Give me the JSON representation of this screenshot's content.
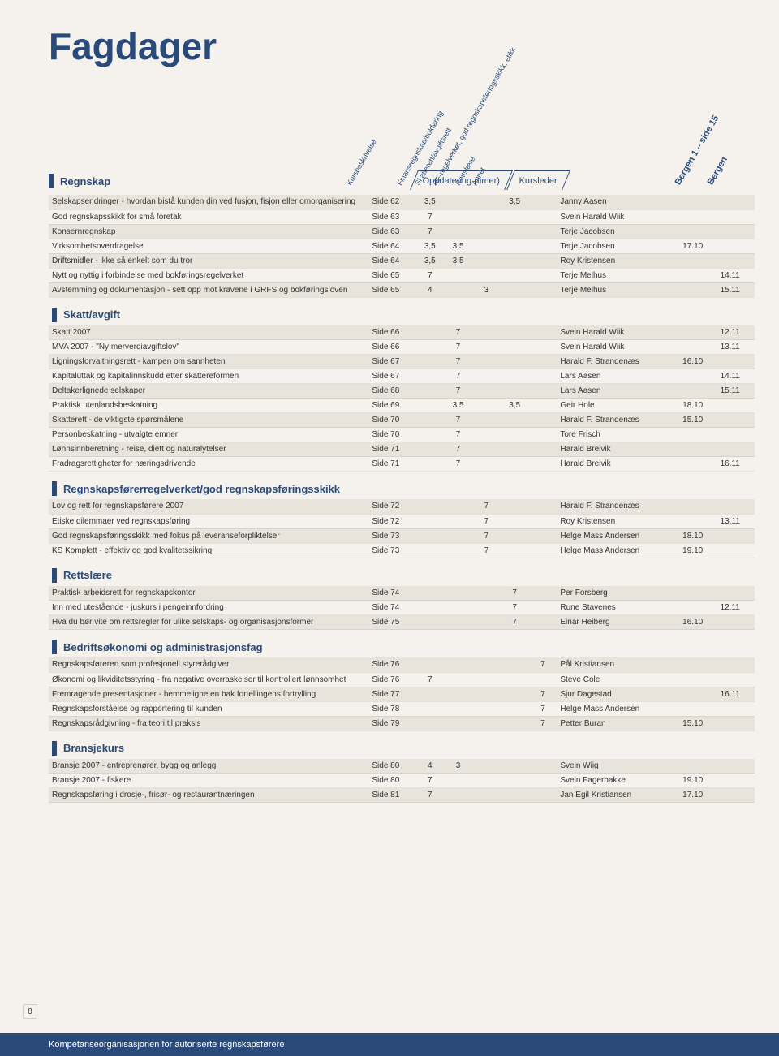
{
  "title": "Fagdager",
  "tabs": [
    "Oppdatering (timer)",
    "Kursleder"
  ],
  "diag_headers": [
    "Kursbeskrivelse",
    "Finansregnskap/bokføring",
    "Skatterett/avgiftsrett",
    "RF-regelverket, god regnskapsføringsskikk, etikk",
    "Rettslære",
    "Annet"
  ],
  "diag_right": [
    "Bergen 1 – side 15",
    "Bergen"
  ],
  "page_number": "8",
  "footer": "Kompetanseorganisasjonen for autoriserte regnskapsførere",
  "sections": [
    {
      "name": "Regnskap",
      "rows": [
        {
          "desc": "Selskapsendringer - hvordan bistå kunden din ved fusjon, fisjon eller omorganisering",
          "side": "Side 62",
          "c1": "3,5",
          "c2": "",
          "c3": "",
          "c4": "3,5",
          "c5": "",
          "person": "Janny Aasen",
          "d1": "",
          "d2": "",
          "shaded": true
        },
        {
          "desc": "God regnskapsskikk for små foretak",
          "side": "Side 63",
          "c1": "7",
          "c2": "",
          "c3": "",
          "c4": "",
          "c5": "",
          "person": "Svein Harald Wiik",
          "d1": "",
          "d2": ""
        },
        {
          "desc": "Konsernregnskap",
          "side": "Side 63",
          "c1": "7",
          "c2": "",
          "c3": "",
          "c4": "",
          "c5": "",
          "person": "Terje Jacobsen",
          "d1": "",
          "d2": "",
          "shaded": true
        },
        {
          "desc": "Virksomhetsoverdragelse",
          "side": "Side 64",
          "c1": "3,5",
          "c2": "3,5",
          "c3": "",
          "c4": "",
          "c5": "",
          "person": "Terje Jacobsen",
          "d1": "17.10",
          "d2": ""
        },
        {
          "desc": "Driftsmidler - ikke så enkelt som du tror",
          "side": "Side 64",
          "c1": "3,5",
          "c2": "3,5",
          "c3": "",
          "c4": "",
          "c5": "",
          "person": "Roy Kristensen",
          "d1": "",
          "d2": "",
          "shaded": true
        },
        {
          "desc": "Nytt og nyttig i forbindelse med bokføringsregelverket",
          "side": "Side 65",
          "c1": "7",
          "c2": "",
          "c3": "",
          "c4": "",
          "c5": "",
          "person": "Terje Melhus",
          "d1": "",
          "d2": "14.11"
        },
        {
          "desc": "Avstemming og dokumentasjon - sett opp mot kravene i GRFS og bokføringsloven",
          "side": "Side 65",
          "c1": "4",
          "c2": "",
          "c3": "3",
          "c4": "",
          "c5": "",
          "person": "Terje Melhus",
          "d1": "",
          "d2": "15.11",
          "shaded": true
        }
      ]
    },
    {
      "name": "Skatt/avgift",
      "rows": [
        {
          "desc": "Skatt 2007",
          "side": "Side 66",
          "c1": "",
          "c2": "7",
          "c3": "",
          "c4": "",
          "c5": "",
          "person": "Svein Harald Wiik",
          "d1": "",
          "d2": "12.11",
          "shaded": true
        },
        {
          "desc": "MVA 2007 - \"Ny merverdiavgiftslov\"",
          "side": "Side 66",
          "c1": "",
          "c2": "7",
          "c3": "",
          "c4": "",
          "c5": "",
          "person": "Svein Harald Wiik",
          "d1": "",
          "d2": "13.11"
        },
        {
          "desc": "Ligningsforvaltningsrett - kampen om sannheten",
          "side": "Side 67",
          "c1": "",
          "c2": "7",
          "c3": "",
          "c4": "",
          "c5": "",
          "person": "Harald F. Strandenæs",
          "d1": "16.10",
          "d2": "",
          "shaded": true
        },
        {
          "desc": "Kapitaluttak og kapitalinnskudd etter skattereformen",
          "side": "Side 67",
          "c1": "",
          "c2": "7",
          "c3": "",
          "c4": "",
          "c5": "",
          "person": "Lars Aasen",
          "d1": "",
          "d2": "14.11"
        },
        {
          "desc": "Deltakerlignede selskaper",
          "side": "Side 68",
          "c1": "",
          "c2": "7",
          "c3": "",
          "c4": "",
          "c5": "",
          "person": "Lars Aasen",
          "d1": "",
          "d2": "15.11",
          "shaded": true
        },
        {
          "desc": "Praktisk utenlandsbeskatning",
          "side": "Side 69",
          "c1": "",
          "c2": "3,5",
          "c3": "",
          "c4": "3,5",
          "c5": "",
          "person": "Geir Hole",
          "d1": "18.10",
          "d2": ""
        },
        {
          "desc": "Skatterett - de viktigste spørsmålene",
          "side": "Side 70",
          "c1": "",
          "c2": "7",
          "c3": "",
          "c4": "",
          "c5": "",
          "person": "Harald F. Strandenæs",
          "d1": "15.10",
          "d2": "",
          "shaded": true
        },
        {
          "desc": "Personbeskatning - utvalgte emner",
          "side": "Side 70",
          "c1": "",
          "c2": "7",
          "c3": "",
          "c4": "",
          "c5": "",
          "person": "Tore Frisch",
          "d1": "",
          "d2": ""
        },
        {
          "desc": "Lønnsinnberetning - reise, diett og naturalytelser",
          "side": "Side 71",
          "c1": "",
          "c2": "7",
          "c3": "",
          "c4": "",
          "c5": "",
          "person": "Harald Breivik",
          "d1": "",
          "d2": "",
          "shaded": true
        },
        {
          "desc": "Fradragsrettigheter for næringsdrivende",
          "side": "Side 71",
          "c1": "",
          "c2": "7",
          "c3": "",
          "c4": "",
          "c5": "",
          "person": "Harald Breivik",
          "d1": "",
          "d2": "16.11"
        }
      ]
    },
    {
      "name": "Regnskapsførerregelverket/god regnskapsføringsskikk",
      "rows": [
        {
          "desc": "Lov og rett for regnskapsførere 2007",
          "side": "Side 72",
          "c1": "",
          "c2": "",
          "c3": "7",
          "c4": "",
          "c5": "",
          "person": "Harald F. Strandenæs",
          "d1": "",
          "d2": "",
          "shaded": true
        },
        {
          "desc": "Etiske dilemmaer ved regnskapsføring",
          "side": "Side 72",
          "c1": "",
          "c2": "",
          "c3": "7",
          "c4": "",
          "c5": "",
          "person": "Roy Kristensen",
          "d1": "",
          "d2": "13.11"
        },
        {
          "desc": "God regnskapsføringsskikk med fokus på leveranseforpliktelser",
          "side": "Side 73",
          "c1": "",
          "c2": "",
          "c3": "7",
          "c4": "",
          "c5": "",
          "person": "Helge Mass Andersen",
          "d1": "18.10",
          "d2": "",
          "shaded": true
        },
        {
          "desc": "KS Komplett - effektiv og god kvalitetssikring",
          "side": "Side 73",
          "c1": "",
          "c2": "",
          "c3": "7",
          "c4": "",
          "c5": "",
          "person": "Helge Mass Andersen",
          "d1": "19.10",
          "d2": ""
        }
      ]
    },
    {
      "name": "Rettslære",
      "rows": [
        {
          "desc": "Praktisk arbeidsrett for regnskapskontor",
          "side": "Side 74",
          "c1": "",
          "c2": "",
          "c3": "",
          "c4": "7",
          "c5": "",
          "person": "Per Forsberg",
          "d1": "",
          "d2": "",
          "shaded": true
        },
        {
          "desc": "Inn med utestående - juskurs i pengeinnfordring",
          "side": "Side 74",
          "c1": "",
          "c2": "",
          "c3": "",
          "c4": "7",
          "c5": "",
          "person": "Rune Stavenes",
          "d1": "",
          "d2": "12.11"
        },
        {
          "desc": "Hva du bør vite om rettsregler for ulike selskaps- og organisasjonsformer",
          "side": "Side 75",
          "c1": "",
          "c2": "",
          "c3": "",
          "c4": "7",
          "c5": "",
          "person": "Einar Heiberg",
          "d1": "16.10",
          "d2": "",
          "shaded": true
        }
      ]
    },
    {
      "name": "Bedriftsøkonomi og administrasjonsfag",
      "rows": [
        {
          "desc": "Regnskapsføreren som profesjonell styrerådgiver",
          "side": "Side 76",
          "c1": "",
          "c2": "",
          "c3": "",
          "c4": "",
          "c5": "7",
          "person": "Pål Kristiansen",
          "d1": "",
          "d2": "",
          "shaded": true
        },
        {
          "desc": "Økonomi og likviditetsstyring - fra negative overraskelser til kontrollert lønnsomhet",
          "side": "Side 76",
          "c1": "7",
          "c2": "",
          "c3": "",
          "c4": "",
          "c5": "",
          "person": "Steve Cole",
          "d1": "",
          "d2": ""
        },
        {
          "desc": "Fremragende presentasjoner - hemmeligheten bak fortellingens fortrylling",
          "side": "Side 77",
          "c1": "",
          "c2": "",
          "c3": "",
          "c4": "",
          "c5": "7",
          "person": "Sjur Dagestad",
          "d1": "",
          "d2": "16.11",
          "shaded": true
        },
        {
          "desc": "Regnskapsforståelse og rapportering til kunden",
          "side": "Side 78",
          "c1": "",
          "c2": "",
          "c3": "",
          "c4": "",
          "c5": "7",
          "person": "Helge Mass Andersen",
          "d1": "",
          "d2": ""
        },
        {
          "desc": "Regnskapsrådgivning - fra teori til praksis",
          "side": "Side 79",
          "c1": "",
          "c2": "",
          "c3": "",
          "c4": "",
          "c5": "7",
          "person": "Petter Buran",
          "d1": "15.10",
          "d2": "",
          "shaded": true
        }
      ]
    },
    {
      "name": "Bransjekurs",
      "rows": [
        {
          "desc": "Bransje 2007 - entreprenører, bygg og anlegg",
          "side": "Side 80",
          "c1": "4",
          "c2": "3",
          "c3": "",
          "c4": "",
          "c5": "",
          "person": "Svein Wiig",
          "d1": "",
          "d2": "",
          "shaded": true
        },
        {
          "desc": "Bransje 2007 - fiskere",
          "side": "Side 80",
          "c1": "7",
          "c2": "",
          "c3": "",
          "c4": "",
          "c5": "",
          "person": "Svein Fagerbakke",
          "d1": "19.10",
          "d2": ""
        },
        {
          "desc": "Regnskapsføring i drosje-, frisør- og restaurantnæringen",
          "side": "Side 81",
          "c1": "7",
          "c2": "",
          "c3": "",
          "c4": "",
          "c5": "",
          "person": "Jan Egil Kristiansen",
          "d1": "17.10",
          "d2": "",
          "shaded": true
        }
      ]
    }
  ]
}
